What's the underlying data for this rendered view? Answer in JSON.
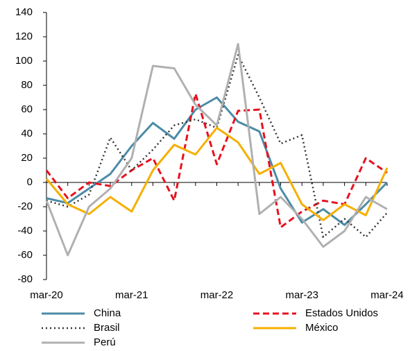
{
  "chart_data": {
    "type": "line",
    "categories": [
      "mar-20",
      null,
      null,
      null,
      "mar-21",
      null,
      null,
      null,
      "mar-22",
      null,
      null,
      null,
      "mar-23",
      null,
      null,
      null,
      "mar-24"
    ],
    "ylim": [
      -80,
      140
    ],
    "yticks": [
      -80,
      -60,
      -40,
      -20,
      0,
      20,
      40,
      60,
      80,
      100,
      120,
      140
    ],
    "legend": "bottom",
    "series": [
      {
        "name": "China",
        "color": "#4b8ba6",
        "style": "solid",
        "values": [
          -13,
          -17,
          -5,
          7,
          30,
          49,
          36,
          60,
          70,
          50,
          42,
          -5,
          -33,
          -22,
          -35,
          -18,
          0
        ]
      },
      {
        "name": "Estados Unidos",
        "color": "#e8101e",
        "style": "dashed",
        "values": [
          10,
          -13,
          0,
          -3,
          10,
          20,
          -15,
          73,
          15,
          59,
          60,
          -37,
          -24,
          -15,
          -18,
          20,
          8
        ]
      },
      {
        "name": "Brasil",
        "color": "#333333",
        "style": "dotted",
        "values": [
          -15,
          -20,
          -10,
          37,
          10,
          27,
          47,
          52,
          45,
          105,
          70,
          32,
          39,
          -45,
          -30,
          -45,
          -25
        ]
      },
      {
        "name": "México",
        "color": "#f5b000",
        "style": "solid",
        "values": [
          3,
          -18,
          -26,
          -12,
          -24,
          10,
          31,
          23,
          45,
          33,
          7,
          16,
          -18,
          -31,
          -18,
          -27,
          12
        ]
      },
      {
        "name": "Perú",
        "color": "#b0b0b0",
        "style": "solid",
        "values": [
          -15,
          -60,
          -20,
          -5,
          20,
          96,
          94,
          64,
          47,
          114,
          -26,
          -12,
          -30,
          -53,
          -40,
          -12,
          -22
        ]
      }
    ]
  }
}
